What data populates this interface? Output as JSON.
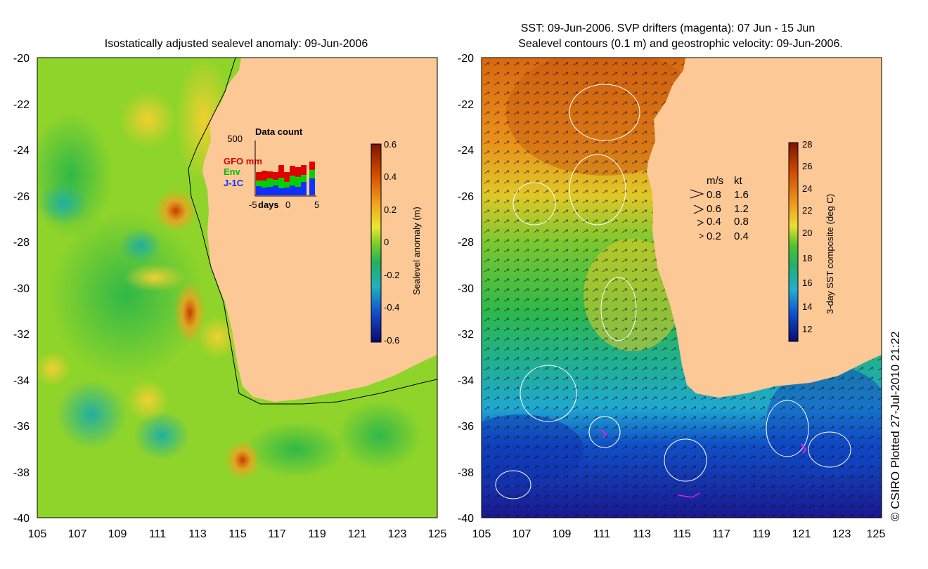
{
  "left_panel": {
    "title": "Isostatically adjusted sealevel anomaly: 09-Jun-2006",
    "y_ticks": [
      "-20",
      "-22",
      "-24",
      "-26",
      "-28",
      "-30",
      "-32",
      "-34",
      "-36",
      "-38",
      "-40"
    ],
    "x_ticks": [
      "105",
      "107",
      "109",
      "111",
      "113",
      "115",
      "117",
      "119",
      "121",
      "123",
      "125"
    ],
    "colorbar": {
      "label": "Sealevel anomaly (m)",
      "ticks": [
        "0.6",
        "0.4",
        "0.2",
        "0",
        "-0.2",
        "-0.4",
        "-0.6"
      ]
    },
    "inset": {
      "max_label": "500",
      "title": "Data count",
      "legend": [
        {
          "label": "GFO mm",
          "color": "#e00000"
        },
        {
          "label": "Env",
          "color": "#00d000"
        },
        {
          "label": "J-1C",
          "color": "#1030ff"
        }
      ],
      "x_labels": [
        "-5",
        "days",
        "0",
        "5"
      ]
    }
  },
  "right_panel": {
    "title_line1": "SST: 09-Jun-2006. SVP drifters (magenta): 07 Jun - 15 Jun",
    "title_line2": "Sealevel contours (0.1 m) and geostrophic velocity: 09-Jun-2006.",
    "y_ticks": [
      "-20",
      "-22",
      "-24",
      "-26",
      "-28",
      "-30",
      "-32",
      "-34",
      "-36",
      "-38",
      "-40"
    ],
    "x_ticks": [
      "105",
      "107",
      "109",
      "111",
      "113",
      "115",
      "117",
      "119",
      "121",
      "123",
      "125"
    ],
    "colorbar": {
      "label": "3-day SST composite (deg C)",
      "ticks": [
        "28",
        "26",
        "24",
        "22",
        "20",
        "18",
        "16",
        "14",
        "12"
      ]
    },
    "velocity_legend": {
      "header_ms": "m/s",
      "header_kt": "kt",
      "rows": [
        {
          "ms": "0.8",
          "kt": "1.6"
        },
        {
          "ms": "0.6",
          "kt": "1.2"
        },
        {
          "ms": "0.4",
          "kt": "0.8"
        },
        {
          "ms": "0.2",
          "kt": "0.4"
        }
      ]
    }
  },
  "credit": "© CSIRO Plotted 27-Jul-2010 21:22",
  "colors": {
    "land": "#fbc896",
    "sla_high": "#8b1a00",
    "sla_mid": "#9cd81a",
    "sla_low": "#0a0a7a",
    "sst_warm": "#d86a10",
    "sst_mid": "#2eb84a",
    "sst_cold": "#1020a0"
  }
}
